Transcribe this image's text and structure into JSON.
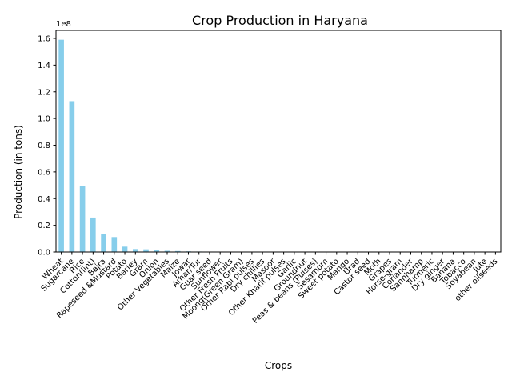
{
  "chart_data": {
    "type": "bar",
    "title": "Crop Production in Haryana",
    "xlabel": "Crops",
    "ylabel": "Production (in tons)",
    "y_scale_label": "1e8",
    "ylim": [
      0,
      166000000
    ],
    "yticks": [
      0,
      20000000,
      40000000,
      60000000,
      80000000,
      100000000,
      120000000,
      140000000,
      160000000
    ],
    "ytick_labels": [
      "0.0",
      "0.2",
      "0.4",
      "0.6",
      "0.8",
      "1.0",
      "1.2",
      "1.4",
      "1.6"
    ],
    "bar_color": "#87ceeb",
    "grid": false,
    "legend": "none",
    "categories": [
      "Wheat",
      "Sugarcane",
      "Rice",
      "Cotton(lint)",
      "Bajra",
      "Rapeseed &Mustard",
      "Potato",
      "Barley",
      "Gram",
      "Onion",
      "Other Vegetables",
      "Maize",
      "Jowar",
      "Arhar/Tur",
      "Guar seed",
      "Sunflower",
      "Other Fresh Fruits",
      "Moong(Green Gram)",
      "Other Rabi pulses",
      "Dry chillies",
      "Masoor",
      "Other Kharif pulses",
      "Garlic",
      "Groundnut",
      "Peas & beans (Pulses)",
      "Sesamum",
      "Sweet potato",
      "Mango",
      "Urad",
      "Castor seed",
      "Moth",
      "Grapes",
      "Horse-gram",
      "Coriander",
      "Sannhamp",
      "Turmeric",
      "Dry ginger",
      "Banana",
      "Tobacco",
      "Soyabean",
      "Jute",
      "other oilseeds"
    ],
    "values": [
      159000000,
      113000000,
      49500000,
      25800000,
      13500000,
      11200000,
      4000000,
      2200000,
      2000000,
      1200000,
      900000,
      700000,
      500000,
      350000,
      300000,
      250000,
      200000,
      150000,
      120000,
      100000,
      90000,
      80000,
      70000,
      60000,
      50000,
      40000,
      35000,
      30000,
      25000,
      20000,
      18000,
      15000,
      12000,
      10000,
      8000,
      6000,
      5000,
      4000,
      3000,
      2000,
      1000,
      500
    ]
  }
}
